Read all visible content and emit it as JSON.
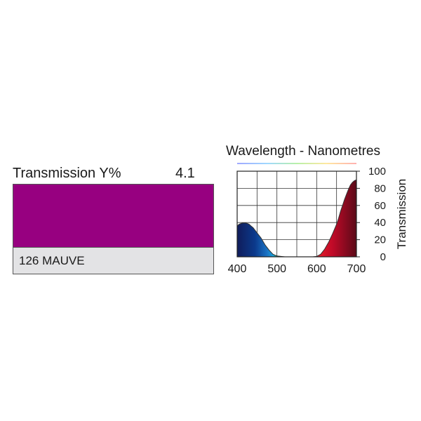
{
  "swatch": {
    "transmission_label": "Transmission Y%",
    "transmission_value": "4.1",
    "filter_name": "126 MAUVE",
    "swatch_color": "#970080",
    "name_box_color": "#e3e3e5"
  },
  "chart_data": {
    "type": "area",
    "title": "Wavelength - Nanometres",
    "xlabel": "",
    "ylabel": "Transmission",
    "xlim": [
      400,
      700
    ],
    "ylim": [
      0,
      100
    ],
    "x_ticks": [
      400,
      500,
      600,
      700
    ],
    "y_ticks": [
      0,
      20,
      40,
      60,
      80,
      100
    ],
    "grid": true,
    "series": [
      {
        "x": [
          400,
          405,
          410,
          415,
          420,
          425,
          430,
          435,
          440,
          450,
          460,
          470,
          480,
          490,
          500,
          510,
          520,
          530,
          540,
          550,
          560,
          570,
          580,
          590,
          600,
          610,
          620,
          630,
          640,
          650,
          655,
          660,
          665,
          670,
          675,
          680,
          685,
          690,
          695,
          700
        ],
        "y": [
          36,
          38,
          39,
          39.5,
          39.5,
          39,
          38,
          36,
          34,
          28,
          22,
          14,
          8,
          3,
          1,
          0.5,
          0,
          0,
          0,
          0,
          0,
          0,
          0,
          0,
          0.5,
          3,
          9,
          17,
          27,
          38,
          45,
          53,
          60,
          67,
          73,
          79,
          84,
          87,
          89,
          90
        ]
      }
    ]
  }
}
